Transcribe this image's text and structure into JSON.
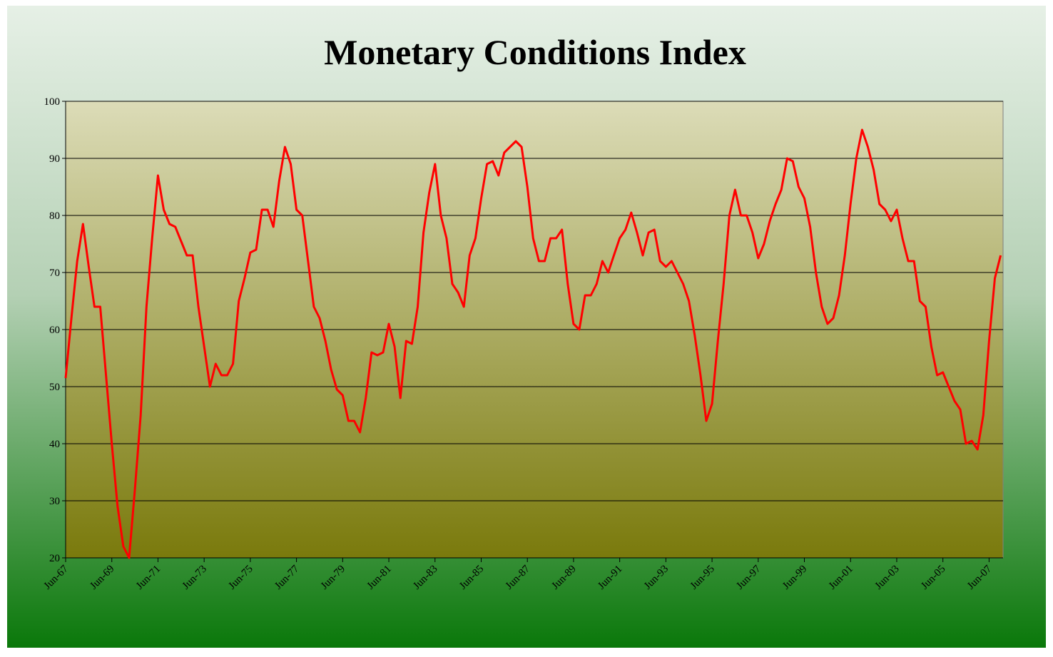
{
  "chart_data": {
    "type": "line",
    "title": "Monetary Conditions Index",
    "categories": [
      "Jun-67",
      null,
      null,
      null,
      null,
      null,
      null,
      null,
      "Jun-69",
      null,
      null,
      null,
      null,
      null,
      null,
      null,
      "Jun-71",
      null,
      null,
      null,
      null,
      null,
      null,
      null,
      "Jun-73",
      null,
      null,
      null,
      null,
      null,
      null,
      null,
      "Jun-75",
      null,
      null,
      null,
      null,
      null,
      null,
      null,
      "Jun-77",
      null,
      null,
      null,
      null,
      null,
      null,
      null,
      "Jun-79",
      null,
      null,
      null,
      null,
      null,
      null,
      null,
      "Jun-81",
      null,
      null,
      null,
      null,
      null,
      null,
      null,
      "Jun-83",
      null,
      null,
      null,
      null,
      null,
      null,
      null,
      "Jun-85",
      null,
      null,
      null,
      null,
      null,
      null,
      null,
      "Jun-87",
      null,
      null,
      null,
      null,
      null,
      null,
      null,
      "Jun-89",
      null,
      null,
      null,
      null,
      null,
      null,
      null,
      "Jun-91",
      null,
      null,
      null,
      null,
      null,
      null,
      null,
      "Jun-93",
      null,
      null,
      null,
      null,
      null,
      null,
      null,
      "Jun-95",
      null,
      null,
      null,
      null,
      null,
      null,
      null,
      "Jun-97",
      null,
      null,
      null,
      null,
      null,
      null,
      null,
      "Jun-99",
      null,
      null,
      null,
      null,
      null,
      null,
      null,
      "Jun-01",
      null,
      null,
      null,
      null,
      null,
      null,
      null,
      "Jun-03",
      null,
      null,
      null,
      null,
      null,
      null,
      null,
      "Jun-05",
      null,
      null,
      null,
      null,
      null,
      null,
      null,
      "Jun-07",
      null,
      null
    ],
    "values": [
      51.5,
      62,
      72,
      78.5,
      71,
      64,
      64,
      52,
      40,
      29,
      22,
      20,
      32,
      45,
      64,
      76,
      87,
      81,
      78.5,
      78,
      75.5,
      73,
      73,
      64,
      57,
      50,
      54,
      52,
      52,
      54,
      65,
      69,
      73.5,
      74,
      81,
      81,
      78,
      86,
      92,
      89,
      81,
      80,
      72,
      64,
      62,
      58,
      53,
      49.5,
      48.5,
      44,
      44,
      42,
      48,
      56,
      55.5,
      56,
      61,
      57,
      48,
      58,
      57.5,
      64,
      77,
      84,
      89,
      80,
      76,
      68,
      66.5,
      64,
      73,
      76,
      83,
      89,
      89.5,
      87,
      91,
      92,
      93,
      92,
      85,
      76,
      72,
      72,
      76,
      76,
      77.5,
      68,
      61,
      60,
      66,
      66,
      68,
      72,
      70,
      73,
      76,
      77.5,
      80.5,
      77,
      73,
      77,
      77.5,
      72,
      71,
      72,
      70,
      68,
      65,
      59,
      52,
      44,
      47,
      58,
      68,
      80,
      84.5,
      80,
      80,
      77,
      72.5,
      75,
      79,
      82,
      84.5,
      90,
      89.5,
      85,
      83,
      78,
      70,
      64,
      61,
      62,
      66,
      73,
      82,
      90,
      95,
      92,
      88,
      82,
      81,
      79,
      81,
      76,
      72,
      72,
      65,
      64,
      57,
      52,
      52.5,
      50,
      47.5,
      46,
      40,
      40.5,
      39,
      45,
      58,
      69,
      73
    ],
    "color": "#ff0000",
    "ylim": [
      20,
      100
    ],
    "yticks": [
      20,
      30,
      40,
      50,
      60,
      70,
      80,
      90,
      100
    ],
    "grid": true
  }
}
